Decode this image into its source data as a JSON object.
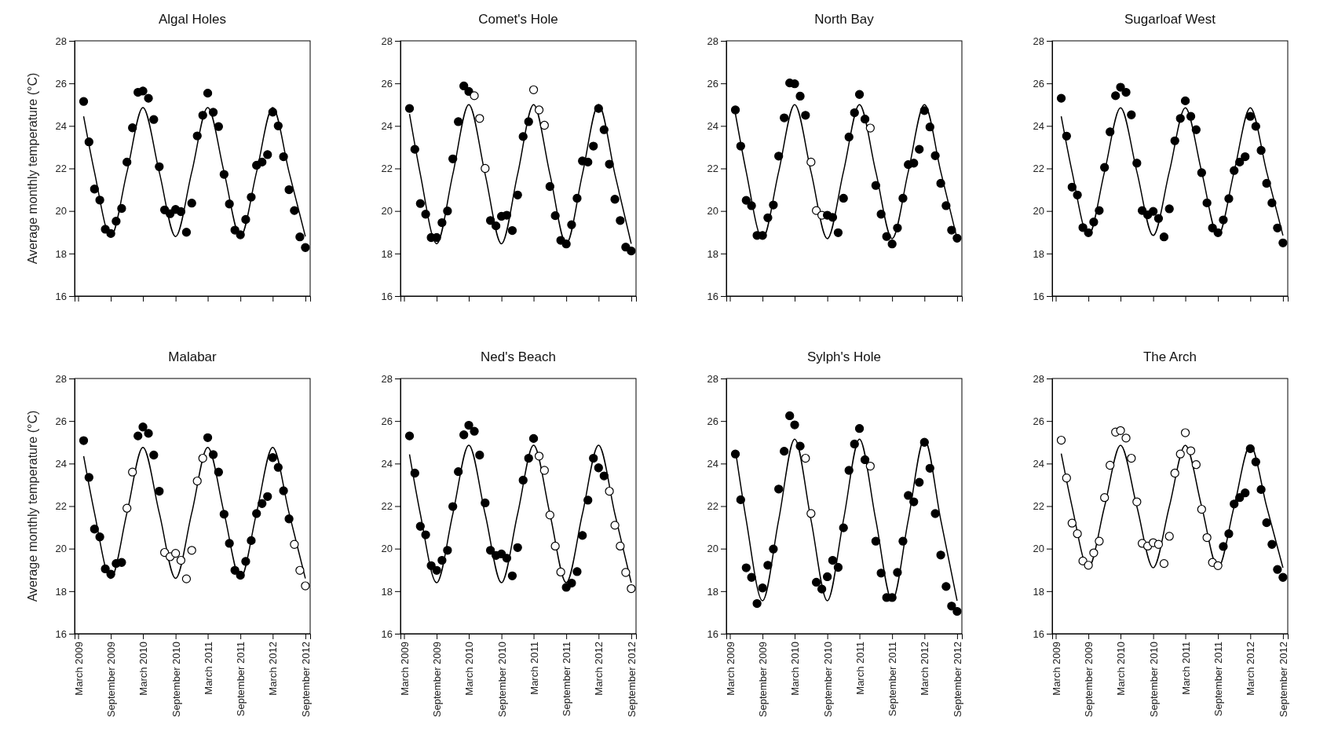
{
  "chart_data": [
    {
      "type": "scatter",
      "title": "Algal Holes",
      "ylabel": "Average monthly temperature (°C)",
      "tick_labels": "y",
      "xlim": [
        "2009-02-09",
        "2012-09-28"
      ],
      "ylim": [
        16,
        28
      ],
      "yticks": [
        16,
        18,
        20,
        22,
        24,
        26,
        28
      ],
      "xticks": [
        {
          "value": "2009-03",
          "label": null
        },
        {
          "value": "2009-09",
          "label": null
        },
        {
          "value": "2010-03",
          "label": null
        },
        {
          "value": "2010-09",
          "label": null
        },
        {
          "value": "2011-03",
          "label": null
        },
        {
          "value": "2011-09",
          "label": null
        },
        {
          "value": "2012-03",
          "label": null
        },
        {
          "value": "2012-09",
          "label": null
        }
      ],
      "x": [
        "2009-04",
        "2009-05",
        "2009-06",
        "2009-07",
        "2009-08",
        "2009-09",
        "2009-10",
        "2009-11",
        "2009-12",
        "2010-01",
        "2010-02",
        "2010-03",
        "2010-04",
        "2010-05",
        "2010-06",
        "2010-07",
        "2010-08",
        "2010-09",
        "2010-10",
        "2010-11",
        "2010-12",
        "2011-01",
        "2011-02",
        "2011-03",
        "2011-04",
        "2011-05",
        "2011-06",
        "2011-07",
        "2011-08",
        "2011-09",
        "2011-10",
        "2011-11",
        "2011-12",
        "2012-01",
        "2012-02",
        "2012-03",
        "2012-04",
        "2012-05",
        "2012-06",
        "2012-07",
        "2012-08",
        "2012-09"
      ],
      "series": [
        {
          "marker": "circle",
          "values": [
            25.15,
            23.25,
            21.03,
            20.51,
            19.14,
            18.94,
            19.52,
            20.12,
            22.3,
            23.91,
            25.58,
            25.64,
            25.3,
            24.3,
            22.08,
            20.05,
            19.87,
            20.07,
            19.97,
            19.0,
            20.37,
            23.53,
            24.5,
            25.54,
            24.64,
            23.97,
            21.72,
            20.33,
            19.1,
            18.88,
            19.6,
            20.65,
            22.15,
            22.3,
            22.65,
            24.65,
            24.0,
            22.55,
            21.0,
            20.02,
            18.78,
            18.28
          ],
          "colors": [
            "#000000",
            "#000000",
            "#000000",
            "#000000",
            "#000000",
            "#000000",
            "#000000",
            "#000000",
            "#000000",
            "#000000",
            "#000000",
            "#000000",
            "#000000",
            "#000000",
            "#000000",
            "#000000",
            "#000000",
            "#000000",
            "#000000",
            "#000000",
            "#000000",
            "#000000",
            "#000000",
            "#000000",
            "#000000",
            "#000000",
            "#000000",
            "#000000",
            "#000000",
            "#000000",
            "#000000",
            "#000000",
            "#000000",
            "#000000",
            "#000000",
            "#000000",
            "#000000",
            "#000000",
            "#000000",
            "#000000",
            "#000000",
            "#000000"
          ]
        },
        {
          "type": "line",
          "color": "#000000",
          "x": [
            "2009-04",
            "2009-06",
            "2009-09",
            "2009-12",
            "2010-03",
            "2010-06",
            "2010-09",
            "2010-12",
            "2011-03",
            "2011-06",
            "2011-09",
            "2011-12",
            "2012-03",
            "2012-06",
            "2012-09"
          ],
          "values": [
            24.45,
            21.83,
            18.8,
            21.83,
            24.86,
            21.83,
            18.8,
            21.83,
            24.86,
            21.83,
            18.8,
            21.83,
            24.86,
            21.83,
            18.8
          ]
        }
      ]
    },
    {
      "type": "scatter",
      "title": "Comet's Hole",
      "tick_labels": "y",
      "xlim": [
        "2009-02-09",
        "2012-09-28"
      ],
      "ylim": [
        16,
        28
      ],
      "yticks": [
        16,
        18,
        20,
        22,
        24,
        26,
        28
      ],
      "xticks": [
        {
          "value": "2009-03",
          "label": null
        },
        {
          "value": "2009-09",
          "label": null
        },
        {
          "value": "2010-03",
          "label": null
        },
        {
          "value": "2010-09",
          "label": null
        },
        {
          "value": "2011-03",
          "label": null
        },
        {
          "value": "2011-09",
          "label": null
        },
        {
          "value": "2012-03",
          "label": null
        },
        {
          "value": "2012-09",
          "label": null
        }
      ],
      "x": [
        "2009-04",
        "2009-05",
        "2009-06",
        "2009-07",
        "2009-08",
        "2009-09",
        "2009-10",
        "2009-11",
        "2009-12",
        "2010-01",
        "2010-02",
        "2010-03",
        "2010-04",
        "2010-05",
        "2010-06",
        "2010-07",
        "2010-08",
        "2010-09",
        "2010-10",
        "2010-11",
        "2010-12",
        "2011-01",
        "2011-02",
        "2011-03",
        "2011-04",
        "2011-05",
        "2011-06",
        "2011-07",
        "2011-08",
        "2011-09",
        "2011-10",
        "2011-11",
        "2011-12",
        "2012-01",
        "2012-02",
        "2012-03",
        "2012-04",
        "2012-05",
        "2012-06",
        "2012-07",
        "2012-08",
        "2012-09"
      ],
      "series": [
        {
          "marker": "circle",
          "values": [
            24.82,
            22.9,
            20.35,
            19.85,
            18.75,
            18.75,
            19.45,
            20.0,
            22.45,
            24.2,
            25.88,
            25.62,
            25.42,
            24.35,
            22.0,
            19.55,
            19.3,
            19.75,
            19.8,
            19.08,
            20.75,
            23.5,
            24.2,
            25.7,
            24.75,
            24.03,
            21.15,
            19.78,
            18.62,
            18.45,
            19.35,
            20.6,
            22.35,
            22.3,
            23.05,
            24.82,
            23.82,
            22.2,
            20.55,
            19.55,
            18.3,
            18.12
          ],
          "colors": [
            "#000000",
            "#000000",
            "#000000",
            "#000000",
            "#000000",
            "#000000",
            "#000000",
            "#000000",
            "#000000",
            "#000000",
            "#000000",
            "#000000",
            "#ffffff",
            "#ffffff",
            "#ffffff",
            "#000000",
            "#000000",
            "#000000",
            "#000000",
            "#000000",
            "#000000",
            "#000000",
            "#000000",
            "#ffffff",
            "#ffffff",
            "#ffffff",
            "#000000",
            "#000000",
            "#000000",
            "#000000",
            "#000000",
            "#000000",
            "#000000",
            "#000000",
            "#000000",
            "#000000",
            "#000000",
            "#000000",
            "#000000",
            "#000000",
            "#000000",
            "#000000"
          ]
        },
        {
          "type": "line",
          "color": "#000000",
          "x": [
            "2009-04",
            "2009-06",
            "2009-09",
            "2009-12",
            "2010-03",
            "2010-06",
            "2010-09",
            "2010-12",
            "2011-03",
            "2011-06",
            "2011-09",
            "2011-12",
            "2012-03",
            "2012-06",
            "2012-09"
          ],
          "values": [
            24.56,
            21.73,
            18.46,
            21.73,
            25.0,
            21.73,
            18.46,
            21.73,
            25.0,
            21.73,
            18.46,
            21.73,
            25.0,
            21.73,
            18.46
          ]
        }
      ]
    },
    {
      "type": "scatter",
      "title": "North Bay",
      "tick_labels": "y",
      "xlim": [
        "2009-02-09",
        "2012-09-28"
      ],
      "ylim": [
        16,
        28
      ],
      "yticks": [
        16,
        18,
        20,
        22,
        24,
        26,
        28
      ],
      "xticks": [
        {
          "value": "2009-03",
          "label": null
        },
        {
          "value": "2009-09",
          "label": null
        },
        {
          "value": "2010-03",
          "label": null
        },
        {
          "value": "2010-09",
          "label": null
        },
        {
          "value": "2011-03",
          "label": null
        },
        {
          "value": "2011-09",
          "label": null
        },
        {
          "value": "2012-03",
          "label": null
        },
        {
          "value": "2012-09",
          "label": null
        }
      ],
      "x": [
        "2009-04",
        "2009-05",
        "2009-06",
        "2009-07",
        "2009-08",
        "2009-09",
        "2009-10",
        "2009-11",
        "2009-12",
        "2010-01",
        "2010-02",
        "2010-03",
        "2010-04",
        "2010-05",
        "2010-06",
        "2010-07",
        "2010-08",
        "2010-09",
        "2010-10",
        "2010-11",
        "2010-12",
        "2011-01",
        "2011-02",
        "2011-03",
        "2011-04",
        "2011-05",
        "2011-06",
        "2011-07",
        "2011-08",
        "2011-09",
        "2011-10",
        "2011-11",
        "2011-12",
        "2012-01",
        "2012-02",
        "2012-03",
        "2012-04",
        "2012-05",
        "2012-06",
        "2012-07",
        "2012-08",
        "2012-09"
      ],
      "series": [
        {
          "marker": "circle",
          "values": [
            24.75,
            23.05,
            20.5,
            20.25,
            18.85,
            18.85,
            19.68,
            20.28,
            22.58,
            24.38,
            26.02,
            25.98,
            25.4,
            24.5,
            22.3,
            20.02,
            19.8,
            19.8,
            19.7,
            18.98,
            20.6,
            23.48,
            24.62,
            25.48,
            24.32,
            23.9,
            21.2,
            19.85,
            18.8,
            18.45,
            19.2,
            20.6,
            22.18,
            22.25,
            22.9,
            24.72,
            23.95,
            22.6,
            21.3,
            20.25,
            19.1,
            18.72
          ],
          "colors": [
            "#000000",
            "#000000",
            "#000000",
            "#000000",
            "#000000",
            "#000000",
            "#000000",
            "#000000",
            "#000000",
            "#000000",
            "#000000",
            "#000000",
            "#000000",
            "#000000",
            "#ffffff",
            "#ffffff",
            "#ffffff",
            "#000000",
            "#000000",
            "#000000",
            "#000000",
            "#000000",
            "#000000",
            "#000000",
            "#000000",
            "#ffffff",
            "#000000",
            "#000000",
            "#000000",
            "#000000",
            "#000000",
            "#000000",
            "#000000",
            "#000000",
            "#000000",
            "#000000",
            "#000000",
            "#000000",
            "#000000",
            "#000000",
            "#000000",
            "#000000"
          ]
        },
        {
          "type": "line",
          "color": "#000000",
          "x": [
            "2009-04",
            "2009-06",
            "2009-09",
            "2009-12",
            "2010-03",
            "2010-06",
            "2010-09",
            "2010-12",
            "2011-03",
            "2011-06",
            "2011-09",
            "2011-12",
            "2012-03",
            "2012-06",
            "2012-09"
          ],
          "values": [
            24.58,
            21.85,
            18.7,
            21.85,
            25.0,
            21.85,
            18.7,
            21.85,
            25.0,
            21.85,
            18.7,
            21.85,
            25.0,
            21.85,
            18.7
          ]
        }
      ]
    },
    {
      "type": "scatter",
      "title": "Sugarloaf West",
      "tick_labels": "y",
      "xlim": [
        "2009-02-09",
        "2012-09-28"
      ],
      "ylim": [
        16,
        28
      ],
      "yticks": [
        16,
        18,
        20,
        22,
        24,
        26,
        28
      ],
      "xticks": [
        {
          "value": "2009-03",
          "label": null
        },
        {
          "value": "2009-09",
          "label": null
        },
        {
          "value": "2010-03",
          "label": null
        },
        {
          "value": "2010-09",
          "label": null
        },
        {
          "value": "2011-03",
          "label": null
        },
        {
          "value": "2011-09",
          "label": null
        },
        {
          "value": "2012-03",
          "label": null
        },
        {
          "value": "2012-09",
          "label": null
        }
      ],
      "x": [
        "2009-04",
        "2009-05",
        "2009-06",
        "2009-07",
        "2009-08",
        "2009-09",
        "2009-10",
        "2009-11",
        "2009-12",
        "2010-01",
        "2010-02",
        "2010-03",
        "2010-04",
        "2010-05",
        "2010-06",
        "2010-07",
        "2010-08",
        "2010-09",
        "2010-10",
        "2010-11",
        "2010-12",
        "2011-01",
        "2011-02",
        "2011-03",
        "2011-04",
        "2011-05",
        "2011-06",
        "2011-07",
        "2011-08",
        "2011-09",
        "2011-10",
        "2011-11",
        "2011-12",
        "2012-01",
        "2012-02",
        "2012-03",
        "2012-04",
        "2012-05",
        "2012-06",
        "2012-07",
        "2012-08",
        "2012-09"
      ],
      "series": [
        {
          "marker": "circle",
          "values": [
            25.3,
            23.52,
            21.12,
            20.75,
            19.22,
            18.98,
            19.48,
            20.02,
            22.05,
            23.72,
            25.42,
            25.82,
            25.58,
            24.52,
            22.25,
            20.02,
            19.82,
            19.98,
            19.65,
            18.78,
            20.1,
            23.3,
            24.35,
            25.18,
            24.45,
            23.82,
            21.8,
            20.38,
            19.2,
            18.98,
            19.58,
            20.58,
            21.9,
            22.3,
            22.55,
            24.45,
            23.98,
            22.85,
            21.3,
            20.38,
            19.2,
            18.5
          ],
          "colors": [
            "#000000",
            "#000000",
            "#000000",
            "#000000",
            "#000000",
            "#000000",
            "#000000",
            "#000000",
            "#000000",
            "#000000",
            "#000000",
            "#000000",
            "#000000",
            "#000000",
            "#000000",
            "#000000",
            "#000000",
            "#000000",
            "#000000",
            "#000000",
            "#000000",
            "#000000",
            "#000000",
            "#000000",
            "#000000",
            "#000000",
            "#000000",
            "#000000",
            "#000000",
            "#000000",
            "#000000",
            "#000000",
            "#000000",
            "#000000",
            "#000000",
            "#000000",
            "#000000",
            "#000000",
            "#000000",
            "#000000",
            "#000000",
            "#000000"
          ]
        },
        {
          "type": "line",
          "color": "#000000",
          "x": [
            "2009-04",
            "2009-06",
            "2009-09",
            "2009-12",
            "2010-03",
            "2010-06",
            "2010-09",
            "2010-12",
            "2011-03",
            "2011-06",
            "2011-09",
            "2011-12",
            "2012-03",
            "2012-06",
            "2012-09"
          ],
          "values": [
            24.45,
            21.85,
            18.85,
            21.85,
            24.85,
            21.85,
            18.85,
            21.85,
            24.85,
            21.85,
            18.85,
            21.85,
            24.85,
            21.85,
            18.85
          ]
        }
      ]
    },
    {
      "type": "scatter",
      "title": "Malabar",
      "ylabel": "Average monthly temperature (°C)",
      "xlim": [
        "2009-02-09",
        "2012-09-28"
      ],
      "ylim": [
        16,
        28
      ],
      "yticks": [
        16,
        18,
        20,
        22,
        24,
        26,
        28
      ],
      "xticks": [
        {
          "value": "2009-03",
          "label": "March 2009"
        },
        {
          "value": "2009-09",
          "label": "September 2009"
        },
        {
          "value": "2010-03",
          "label": "March 2010"
        },
        {
          "value": "2010-09",
          "label": "September 2010"
        },
        {
          "value": "2011-03",
          "label": "March 2011"
        },
        {
          "value": "2011-09",
          "label": "September 2011"
        },
        {
          "value": "2012-03",
          "label": "March 2012"
        },
        {
          "value": "2012-09",
          "label": "September 2012"
        }
      ],
      "x": [
        "2009-04",
        "2009-05",
        "2009-06",
        "2009-07",
        "2009-08",
        "2009-09",
        "2009-10",
        "2009-11",
        "2009-12",
        "2010-01",
        "2010-02",
        "2010-03",
        "2010-04",
        "2010-05",
        "2010-06",
        "2010-07",
        "2010-08",
        "2010-09",
        "2010-10",
        "2010-11",
        "2010-12",
        "2011-01",
        "2011-02",
        "2011-03",
        "2011-04",
        "2011-05",
        "2011-06",
        "2011-07",
        "2011-08",
        "2011-09",
        "2011-10",
        "2011-11",
        "2011-12",
        "2012-01",
        "2012-02",
        "2012-03",
        "2012-04",
        "2012-05",
        "2012-06",
        "2012-07",
        "2012-08",
        "2012-09"
      ],
      "series": [
        {
          "marker": "circle",
          "values": [
            25.08,
            23.35,
            20.92,
            20.55,
            19.05,
            18.8,
            19.3,
            19.35,
            21.9,
            23.6,
            25.3,
            25.72,
            25.42,
            24.4,
            22.7,
            19.82,
            19.62,
            19.78,
            19.45,
            18.58,
            19.92,
            23.18,
            24.25,
            25.22,
            24.42,
            23.6,
            21.62,
            20.25,
            18.98,
            18.75,
            19.4,
            20.38,
            21.65,
            22.12,
            22.45,
            24.28,
            23.82,
            22.72,
            21.4,
            20.2,
            18.98,
            18.25
          ],
          "colors": [
            "#000000",
            "#000000",
            "#000000",
            "#000000",
            "#000000",
            "#000000",
            "#000000",
            "#000000",
            "#ffffff",
            "#ffffff",
            "#000000",
            "#000000",
            "#000000",
            "#000000",
            "#000000",
            "#ffffff",
            "#ffffff",
            "#ffffff",
            "#ffffff",
            "#ffffff",
            "#ffffff",
            "#ffffff",
            "#ffffff",
            "#000000",
            "#000000",
            "#000000",
            "#000000",
            "#000000",
            "#000000",
            "#000000",
            "#000000",
            "#000000",
            "#000000",
            "#000000",
            "#000000",
            "#000000",
            "#000000",
            "#000000",
            "#000000",
            "#ffffff",
            "#ffffff",
            "#ffffff"
          ]
        },
        {
          "type": "line",
          "color": "#000000",
          "x": [
            "2009-04",
            "2009-06",
            "2009-09",
            "2009-12",
            "2010-03",
            "2010-06",
            "2010-09",
            "2010-12",
            "2011-03",
            "2011-06",
            "2011-09",
            "2011-12",
            "2012-03",
            "2012-06",
            "2012-09"
          ],
          "values": [
            24.35,
            21.68,
            18.6,
            21.68,
            24.76,
            21.68,
            18.6,
            21.68,
            24.76,
            21.68,
            18.6,
            21.68,
            24.76,
            21.68,
            18.6
          ]
        }
      ]
    },
    {
      "type": "scatter",
      "title": "Ned's Beach",
      "xlim": [
        "2009-02-09",
        "2012-09-28"
      ],
      "ylim": [
        16,
        28
      ],
      "yticks": [
        16,
        18,
        20,
        22,
        24,
        26,
        28
      ],
      "xticks": [
        {
          "value": "2009-03",
          "label": "March 2009"
        },
        {
          "value": "2009-09",
          "label": "September 2009"
        },
        {
          "value": "2010-03",
          "label": "March 2010"
        },
        {
          "value": "2010-09",
          "label": "September 2010"
        },
        {
          "value": "2011-03",
          "label": "March 2011"
        },
        {
          "value": "2011-09",
          "label": "September 2011"
        },
        {
          "value": "2012-03",
          "label": "March 2012"
        },
        {
          "value": "2012-09",
          "label": "September 2012"
        }
      ],
      "x": [
        "2009-04",
        "2009-05",
        "2009-06",
        "2009-07",
        "2009-08",
        "2009-09",
        "2009-10",
        "2009-11",
        "2009-12",
        "2010-01",
        "2010-02",
        "2010-03",
        "2010-04",
        "2010-05",
        "2010-06",
        "2010-07",
        "2010-08",
        "2010-09",
        "2010-10",
        "2010-11",
        "2010-12",
        "2011-01",
        "2011-02",
        "2011-03",
        "2011-04",
        "2011-05",
        "2011-06",
        "2011-07",
        "2011-08",
        "2011-09",
        "2011-10",
        "2011-11",
        "2011-12",
        "2012-01",
        "2012-02",
        "2012-03",
        "2012-04",
        "2012-05",
        "2012-06",
        "2012-07",
        "2012-08",
        "2012-09"
      ],
      "series": [
        {
          "marker": "circle",
          "values": [
            25.3,
            23.55,
            21.05,
            20.65,
            19.2,
            18.98,
            19.45,
            19.92,
            21.98,
            23.62,
            25.35,
            25.8,
            25.52,
            24.4,
            22.15,
            19.92,
            19.68,
            19.75,
            19.55,
            18.72,
            20.05,
            23.22,
            24.25,
            25.18,
            24.35,
            23.68,
            21.58,
            20.12,
            18.9,
            18.18,
            18.38,
            18.92,
            20.62,
            22.28,
            24.25,
            23.8,
            23.42,
            22.7,
            21.1,
            20.12,
            18.88,
            18.12
          ],
          "colors": [
            "#000000",
            "#000000",
            "#000000",
            "#000000",
            "#000000",
            "#000000",
            "#000000",
            "#000000",
            "#000000",
            "#000000",
            "#000000",
            "#000000",
            "#000000",
            "#000000",
            "#000000",
            "#000000",
            "#000000",
            "#000000",
            "#000000",
            "#000000",
            "#000000",
            "#000000",
            "#000000",
            "#000000",
            "#ffffff",
            "#ffffff",
            "#ffffff",
            "#ffffff",
            "#ffffff",
            "#000000",
            "#000000",
            "#000000",
            "#000000",
            "#000000",
            "#000000",
            "#000000",
            "#000000",
            "#ffffff",
            "#ffffff",
            "#ffffff",
            "#ffffff",
            "#ffffff"
          ]
        },
        {
          "type": "line",
          "color": "#000000",
          "x": [
            "2009-04",
            "2009-06",
            "2009-09",
            "2009-12",
            "2010-03",
            "2010-06",
            "2010-09",
            "2010-12",
            "2011-03",
            "2011-06",
            "2011-09",
            "2011-12",
            "2012-03",
            "2012-06",
            "2012-09"
          ],
          "values": [
            24.43,
            21.63,
            18.4,
            21.63,
            24.86,
            21.63,
            18.4,
            21.63,
            24.86,
            21.63,
            18.4,
            21.63,
            24.86,
            21.63,
            18.4
          ]
        }
      ]
    },
    {
      "type": "scatter",
      "title": "Sylph's Hole",
      "xlim": [
        "2009-02-09",
        "2012-09-28"
      ],
      "ylim": [
        16,
        28
      ],
      "yticks": [
        16,
        18,
        20,
        22,
        24,
        26,
        28
      ],
      "xticks": [
        {
          "value": "2009-03",
          "label": "March 2009"
        },
        {
          "value": "2009-09",
          "label": "September 2009"
        },
        {
          "value": "2010-03",
          "label": "March 2010"
        },
        {
          "value": "2010-09",
          "label": "September 2010"
        },
        {
          "value": "2011-03",
          "label": "March 2011"
        },
        {
          "value": "2011-09",
          "label": "September 2011"
        },
        {
          "value": "2012-03",
          "label": "March 2012"
        },
        {
          "value": "2012-09",
          "label": "September 2012"
        }
      ],
      "x": [
        "2009-04",
        "2009-05",
        "2009-06",
        "2009-07",
        "2009-08",
        "2009-09",
        "2009-10",
        "2009-11",
        "2009-12",
        "2010-01",
        "2010-02",
        "2010-03",
        "2010-04",
        "2010-05",
        "2010-06",
        "2010-07",
        "2010-08",
        "2010-09",
        "2010-10",
        "2010-11",
        "2010-12",
        "2011-01",
        "2011-02",
        "2011-03",
        "2011-04",
        "2011-05",
        "2011-06",
        "2011-07",
        "2011-08",
        "2011-09",
        "2011-10",
        "2011-11",
        "2011-12",
        "2012-01",
        "2012-02",
        "2012-03",
        "2012-04",
        "2012-05",
        "2012-06",
        "2012-07",
        "2012-08",
        "2012-09"
      ],
      "series": [
        {
          "marker": "circle",
          "values": [
            24.45,
            22.3,
            19.1,
            18.65,
            17.42,
            18.15,
            19.22,
            19.98,
            22.8,
            24.58,
            26.25,
            25.82,
            24.82,
            24.25,
            21.65,
            18.42,
            18.1,
            18.68,
            19.45,
            19.12,
            20.98,
            23.68,
            24.92,
            25.65,
            24.18,
            23.88,
            20.35,
            18.85,
            17.7,
            17.7,
            18.88,
            20.35,
            22.5,
            22.2,
            23.12,
            25.0,
            23.78,
            21.65,
            19.7,
            18.22,
            17.3,
            17.05
          ],
          "colors": [
            "#000000",
            "#000000",
            "#000000",
            "#000000",
            "#000000",
            "#000000",
            "#000000",
            "#000000",
            "#000000",
            "#000000",
            "#000000",
            "#000000",
            "#000000",
            "#ffffff",
            "#ffffff",
            "#000000",
            "#000000",
            "#000000",
            "#000000",
            "#000000",
            "#000000",
            "#000000",
            "#000000",
            "#000000",
            "#000000",
            "#ffffff",
            "#000000",
            "#000000",
            "#000000",
            "#000000",
            "#000000",
            "#000000",
            "#000000",
            "#000000",
            "#000000",
            "#000000",
            "#000000",
            "#000000",
            "#000000",
            "#000000",
            "#000000",
            "#000000"
          ]
        },
        {
          "type": "line",
          "color": "#000000",
          "x": [
            "2009-04",
            "2009-06",
            "2009-09",
            "2009-12",
            "2010-03",
            "2010-06",
            "2010-09",
            "2010-12",
            "2011-03",
            "2011-06",
            "2011-09",
            "2011-12",
            "2012-03",
            "2012-06",
            "2012-09"
          ],
          "values": [
            24.64,
            21.35,
            17.55,
            21.35,
            25.15,
            21.35,
            17.55,
            21.35,
            25.15,
            21.35,
            17.55,
            21.35,
            25.15,
            21.35,
            17.55
          ]
        }
      ]
    },
    {
      "type": "scatter",
      "title": "The Arch",
      "xlim": [
        "2009-02-09",
        "2012-09-28"
      ],
      "ylim": [
        16,
        28
      ],
      "yticks": [
        16,
        18,
        20,
        22,
        24,
        26,
        28
      ],
      "xticks": [
        {
          "value": "2009-03",
          "label": "March 2009"
        },
        {
          "value": "2009-09",
          "label": "September 2009"
        },
        {
          "value": "2010-03",
          "label": "March 2010"
        },
        {
          "value": "2010-09",
          "label": "September 2010"
        },
        {
          "value": "2011-03",
          "label": "March 2011"
        },
        {
          "value": "2011-09",
          "label": "September 2011"
        },
        {
          "value": "2012-03",
          "label": "March 2012"
        },
        {
          "value": "2012-09",
          "label": "September 2012"
        }
      ],
      "x": [
        "2009-04",
        "2009-05",
        "2009-06",
        "2009-07",
        "2009-08",
        "2009-09",
        "2009-10",
        "2009-11",
        "2009-12",
        "2010-01",
        "2010-02",
        "2010-03",
        "2010-04",
        "2010-05",
        "2010-06",
        "2010-07",
        "2010-08",
        "2010-09",
        "2010-10",
        "2010-11",
        "2010-12",
        "2011-01",
        "2011-02",
        "2011-03",
        "2011-04",
        "2011-05",
        "2011-06",
        "2011-07",
        "2011-08",
        "2011-09",
        "2011-10",
        "2011-11",
        "2011-12",
        "2012-01",
        "2012-02",
        "2012-03",
        "2012-04",
        "2012-05",
        "2012-06",
        "2012-07",
        "2012-08",
        "2012-09"
      ],
      "series": [
        {
          "marker": "circle",
          "values": [
            25.1,
            23.32,
            21.2,
            20.7,
            19.42,
            19.22,
            19.8,
            20.35,
            22.4,
            23.92,
            25.48,
            25.55,
            25.2,
            24.25,
            22.2,
            20.25,
            20.12,
            20.28,
            20.2,
            19.3,
            20.58,
            23.55,
            24.45,
            25.45,
            24.6,
            23.95,
            21.85,
            20.52,
            19.35,
            19.2,
            20.1,
            20.7,
            22.1,
            22.4,
            22.62,
            24.7,
            24.08,
            22.78,
            21.22,
            20.2,
            19.02,
            18.65
          ],
          "colors": [
            "#ffffff",
            "#ffffff",
            "#ffffff",
            "#ffffff",
            "#ffffff",
            "#ffffff",
            "#ffffff",
            "#ffffff",
            "#ffffff",
            "#ffffff",
            "#ffffff",
            "#ffffff",
            "#ffffff",
            "#ffffff",
            "#ffffff",
            "#ffffff",
            "#ffffff",
            "#ffffff",
            "#ffffff",
            "#ffffff",
            "#ffffff",
            "#ffffff",
            "#ffffff",
            "#ffffff",
            "#ffffff",
            "#ffffff",
            "#ffffff",
            "#ffffff",
            "#ffffff",
            "#ffffff",
            "#000000",
            "#000000",
            "#000000",
            "#000000",
            "#000000",
            "#000000",
            "#000000",
            "#000000",
            "#000000",
            "#000000",
            "#000000",
            "#000000"
          ]
        },
        {
          "type": "line",
          "color": "#000000",
          "x": [
            "2009-04",
            "2009-06",
            "2009-09",
            "2009-12",
            "2010-03",
            "2010-06",
            "2010-09",
            "2010-12",
            "2011-03",
            "2011-06",
            "2011-09",
            "2011-12",
            "2012-03",
            "2012-06",
            "2012-09"
          ],
          "values": [
            24.47,
            21.98,
            19.1,
            21.98,
            24.86,
            21.98,
            19.1,
            21.98,
            24.86,
            21.98,
            19.1,
            21.98,
            24.86,
            21.98,
            19.1
          ]
        }
      ]
    }
  ]
}
